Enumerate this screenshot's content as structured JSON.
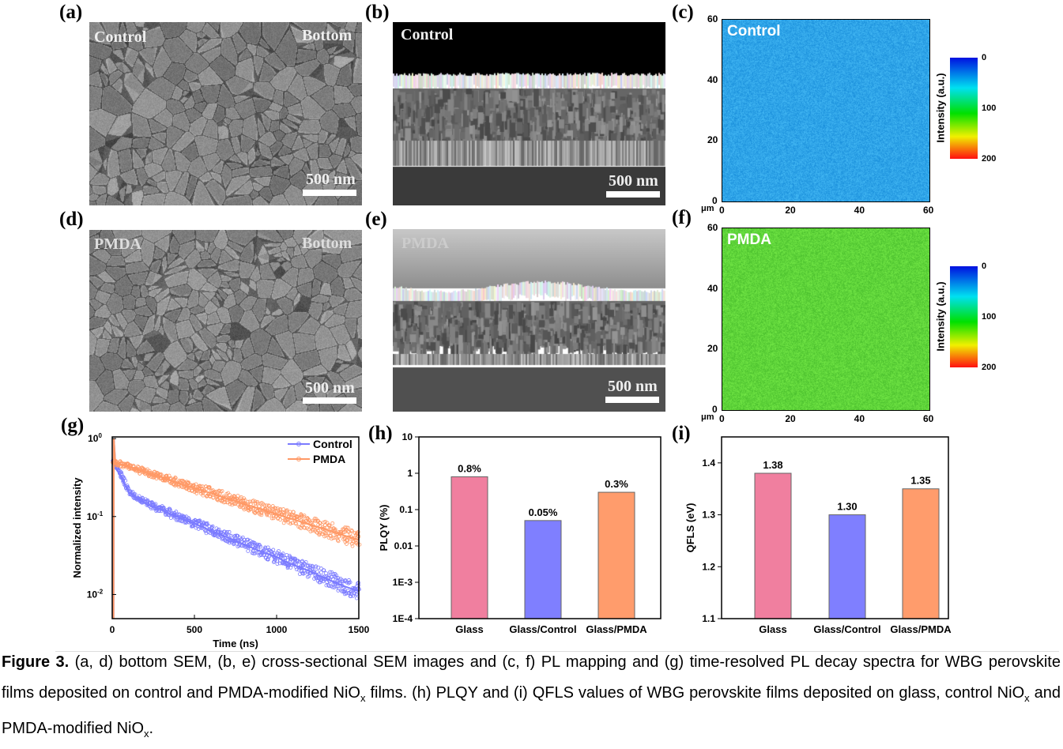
{
  "panels": {
    "a": {
      "label": "(a)",
      "tl": "Control",
      "tr": "Bottom",
      "scale": "500 nm"
    },
    "b": {
      "label": "(b)",
      "tl": "Control",
      "scale": "500 nm"
    },
    "c": {
      "label": "(c)",
      "tl": "Control",
      "unit": "μm",
      "ticks": [
        "0",
        "20",
        "40",
        "60"
      ],
      "cbar_title": "Intensity (a.u.)",
      "cbar_ticks": [
        "0",
        "100",
        "200"
      ],
      "map_color": "#2fa4e8"
    },
    "d": {
      "label": "(d)",
      "tl": "PMDA",
      "tr": "Bottom",
      "scale": "500 nm"
    },
    "e": {
      "label": "(e)",
      "tl": "PMDA",
      "scale": "500 nm"
    },
    "f": {
      "label": "(f)",
      "tl": "PMDA",
      "unit": "μm",
      "ticks": [
        "0",
        "20",
        "40",
        "60"
      ],
      "cbar_title": "Intensity (a.u.)",
      "cbar_ticks": [
        "0",
        "100",
        "200"
      ],
      "map_color": "#5fd43a"
    },
    "g": {
      "label": "(g)"
    },
    "h": {
      "label": "(h)"
    },
    "i": {
      "label": "(i)"
    }
  },
  "chart_data": [
    {
      "type": "scatter",
      "title": "",
      "xlabel": "Time (ns)",
      "ylabel": "Normalized intensity",
      "xlim": [
        0,
        1500
      ],
      "ylim": [
        0.0049,
        1.05
      ],
      "yscale": "log",
      "xticks": [
        "0",
        "500",
        "1000",
        "1500"
      ],
      "yticks": [
        {
          "v": 1,
          "b": "10",
          "e": "0"
        },
        {
          "v": 0.1,
          "b": "10",
          "e": "-1"
        },
        {
          "v": 0.01,
          "b": "10",
          "e": "-2"
        }
      ],
      "legend_position": "top-right",
      "x": [
        0,
        100,
        200,
        300,
        400,
        500,
        600,
        700,
        800,
        900,
        1000,
        1100,
        1200,
        1300,
        1400,
        1500
      ],
      "series": [
        {
          "name": "Control",
          "color": "#7b7bff",
          "values": [
            0.52,
            0.205,
            0.148,
            0.121,
            0.099,
            0.081,
            0.066,
            0.054,
            0.044,
            0.036,
            0.03,
            0.024,
            0.02,
            0.016,
            0.013,
            0.011
          ]
        },
        {
          "name": "PMDA",
          "color": "#ff9966",
          "values": [
            0.5,
            0.43,
            0.37,
            0.32,
            0.27,
            0.23,
            0.2,
            0.17,
            0.146,
            0.125,
            0.107,
            0.092,
            0.079,
            0.068,
            0.058,
            0.05
          ]
        }
      ]
    },
    {
      "type": "bar",
      "xlabel": "",
      "ylabel": "PLQY (%)",
      "yscale": "log",
      "ylim": [
        0.0001,
        10
      ],
      "yticks": [
        {
          "v": 10,
          "t": "10"
        },
        {
          "v": 1,
          "t": "1"
        },
        {
          "v": 0.1,
          "t": "0.1"
        },
        {
          "v": 0.01,
          "t": "0.01"
        },
        {
          "v": 0.001,
          "t": "1E-3"
        },
        {
          "v": 0.0001,
          "t": "1E-4"
        }
      ],
      "categories": [
        "Glass",
        "Glass/Control",
        "Glass/PMDA"
      ],
      "values": [
        0.8,
        0.05,
        0.3
      ],
      "labels": [
        "0.8%",
        "0.05%",
        "0.3%"
      ],
      "colors": [
        "#f07f9f",
        "#7f7fff",
        "#ff9c6c"
      ]
    },
    {
      "type": "bar",
      "xlabel": "",
      "ylabel": "QFLS (eV)",
      "ylim": [
        1.1,
        1.45
      ],
      "yticks": [
        {
          "v": 1.4,
          "t": "1.4"
        },
        {
          "v": 1.3,
          "t": "1.3"
        },
        {
          "v": 1.2,
          "t": "1.2"
        },
        {
          "v": 1.1,
          "t": "1.1"
        }
      ],
      "categories": [
        "Glass",
        "Glass/Control",
        "Glass/PMDA"
      ],
      "values": [
        1.38,
        1.3,
        1.35
      ],
      "labels": [
        "1.38",
        "1.30",
        "1.35"
      ],
      "colors": [
        "#f07f9f",
        "#7f7fff",
        "#ff9c6c"
      ]
    }
  ],
  "caption": {
    "fig": "Figure 3.",
    "t1": " (a, d) bottom SEM, (b, e) cross-sectional SEM images and (c, f) PL mapping and (g) time-resolved PL decay spectra for WBG perovskite films deposited on control and PMDA-modified NiO",
    "x": "x",
    "t2": " films. (h) PLQY and (i) QFLS values of WBG perovskite films deposited on glass, control NiO",
    "t3": " and PMDA-modified NiO",
    "t4": "."
  }
}
